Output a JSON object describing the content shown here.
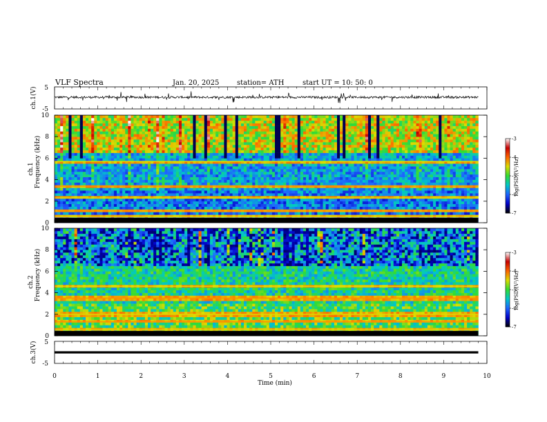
{
  "header": {
    "title": "VLF  Spectra",
    "date": "Jan. 20, 2025",
    "station": "station= ATH",
    "start": "start  UT  =    10: 50: 0"
  },
  "chart_data": [
    {
      "type": "line",
      "panel": "ch1-waveform",
      "ylabel": "ch.1(V)",
      "ylim": [
        -5,
        5
      ],
      "yticks": [
        "5",
        "-5"
      ],
      "x_range_min": [
        0,
        9.8
      ],
      "baseline_v": 0.3,
      "amplitude_v": 1.2
    },
    {
      "type": "heatmap",
      "panel": "ch1-spectrogram",
      "ylabel": "ch.1",
      "ylabel2": "Frequency  (kHz)",
      "ylim": [
        0,
        10
      ],
      "yticks": [
        "0",
        "2",
        "4",
        "6",
        "8",
        "10"
      ],
      "colorbar": {
        "label": "log(PSD)(V²/Hz)",
        "range": [
          -7,
          -3
        ],
        "ticks": [
          "-3",
          "-4",
          "-5",
          "-6",
          "-7"
        ]
      },
      "strong_bands_khz": [
        0.6,
        1.1,
        2.3,
        3.4,
        5.7
      ],
      "noise_high_band_khz": [
        6.5,
        10
      ]
    },
    {
      "type": "heatmap",
      "panel": "ch2-spectrogram",
      "ylabel": "ch.2",
      "ylabel2": "Frequency  (kHz)",
      "ylim": [
        0,
        10
      ],
      "yticks": [
        "0",
        "2",
        "4",
        "6",
        "8",
        "10"
      ],
      "colorbar": {
        "label": "log(PSD)(V²/Hz)",
        "range": [
          -7,
          -3
        ],
        "ticks": [
          "-3",
          "-4",
          "-5",
          "-6",
          "-7"
        ]
      },
      "strong_bands_khz": [
        0.6,
        1.3,
        2.0,
        3.5,
        4.6
      ],
      "noise_high_band_khz": [
        6.5,
        10
      ]
    },
    {
      "type": "line",
      "panel": "ch3-waveform",
      "ylabel": "ch.3(V)",
      "ylim": [
        -5,
        5
      ],
      "yticks": [
        "5",
        "-5"
      ],
      "x_range_min": [
        0,
        9.8
      ],
      "baseline_v": 0.0,
      "amplitude_v": 0.05
    }
  ],
  "xaxis": {
    "label": "Time  (min)",
    "ticks": [
      "0",
      "1",
      "2",
      "3",
      "4",
      "5",
      "6",
      "7",
      "8",
      "9",
      "10"
    ],
    "range": [
      0,
      10
    ]
  },
  "colors": {
    "spectrum": [
      "#000000",
      "#0000c8",
      "#1e64ff",
      "#00c8c8",
      "#32dc32",
      "#dcdc00",
      "#ff6400",
      "#c80000",
      "#ffffff"
    ]
  }
}
